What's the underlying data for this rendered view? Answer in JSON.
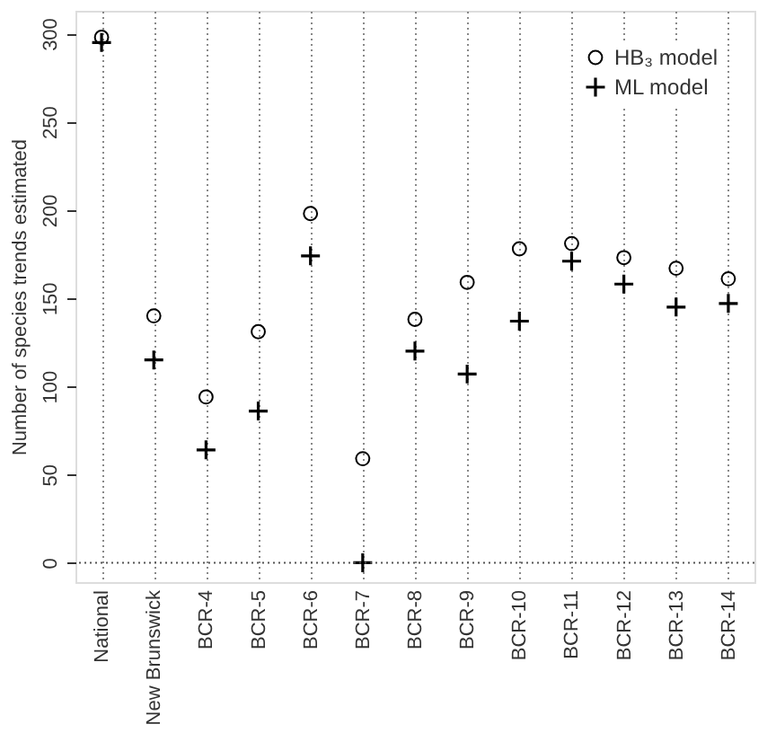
{
  "chart_data": {
    "type": "scatter",
    "ylabel": "Number of species trends estimated",
    "categories": [
      "National",
      "New Brunswick",
      "BCR-4",
      "BCR-5",
      "BCR-6",
      "BCR-7",
      "BCR-8",
      "BCR-9",
      "BCR-10",
      "BCR-11",
      "BCR-12",
      "BCR-13",
      "BCR-14"
    ],
    "series": [
      {
        "name": "HB₃ model",
        "color": "#000000",
        "marker": "circle",
        "values": [
          298,
          140,
          94,
          131,
          198,
          59,
          138,
          159,
          178,
          181,
          173,
          167,
          161
        ]
      },
      {
        "name": "ML model",
        "color": "#000000",
        "marker": "cross",
        "values": [
          295,
          115,
          64,
          86,
          174,
          0,
          120,
          107,
          137,
          171,
          158,
          145,
          147
        ]
      }
    ],
    "ylim": [
      -11,
      313
    ],
    "yticks": [
      0,
      50,
      100,
      150,
      200,
      250,
      300
    ],
    "grid": "x",
    "legend": "top right",
    "ref_lines": [
      {
        "axis": "y",
        "value": 0,
        "label": null,
        "color": "#555555",
        "line_style": "dotted"
      }
    ]
  }
}
